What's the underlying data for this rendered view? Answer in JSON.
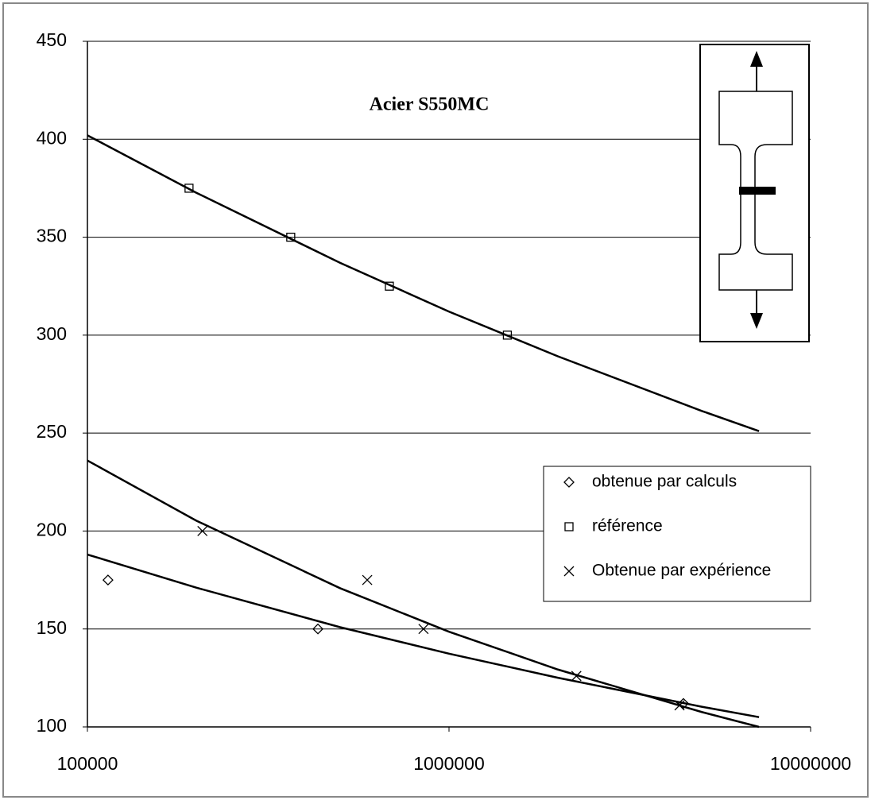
{
  "chart_data": {
    "type": "scatter",
    "title": "Acier S550MC",
    "xscale": "log",
    "xlim": [
      100000,
      10000000
    ],
    "xticks": [
      100000,
      1000000,
      10000000
    ],
    "ylim": [
      100,
      450
    ],
    "yticks": [
      100,
      150,
      200,
      250,
      300,
      350,
      400,
      450
    ],
    "grid": true,
    "legend": "right",
    "series": [
      {
        "name": "obtenue par calculs",
        "marker": "diamond",
        "color": "#000000",
        "x": [
          114000,
          434000,
          4450000
        ],
        "values": [
          175,
          150,
          112
        ]
      },
      {
        "name": "référence",
        "marker": "square",
        "color": "#000000",
        "x": [
          191000,
          365000,
          684000,
          1450000
        ],
        "values": [
          375,
          350,
          325,
          300
        ]
      },
      {
        "name": "Obtenue par expérience",
        "marker": "x",
        "color": "#000000",
        "x": [
          208000,
          594000,
          850000,
          2250000,
          4340000
        ],
        "values": [
          200,
          175,
          150,
          126,
          111
        ]
      }
    ],
    "trendlines": [
      {
        "color": "#000000",
        "x": [
          100000,
          200000,
          500000,
          1000000,
          2000000,
          5000000,
          7200000
        ],
        "values": [
          188,
          171.1,
          150.9,
          137.4,
          125.1,
          110.3,
          105
        ]
      },
      {
        "color": "#000000",
        "x": [
          100000,
          200000,
          500000,
          1000000,
          2000000,
          5000000,
          7200000
        ],
        "values": [
          402,
          372.7,
          336.9,
          312,
          289.2,
          261.3,
          251
        ]
      },
      {
        "color": "#000000",
        "x": [
          100000,
          200000,
          500000,
          1000000,
          2000000,
          5000000,
          7200000
        ],
        "values": [
          236,
          205.3,
          170.8,
          148.6,
          129.3,
          107.6,
          100
        ]
      }
    ]
  }
}
